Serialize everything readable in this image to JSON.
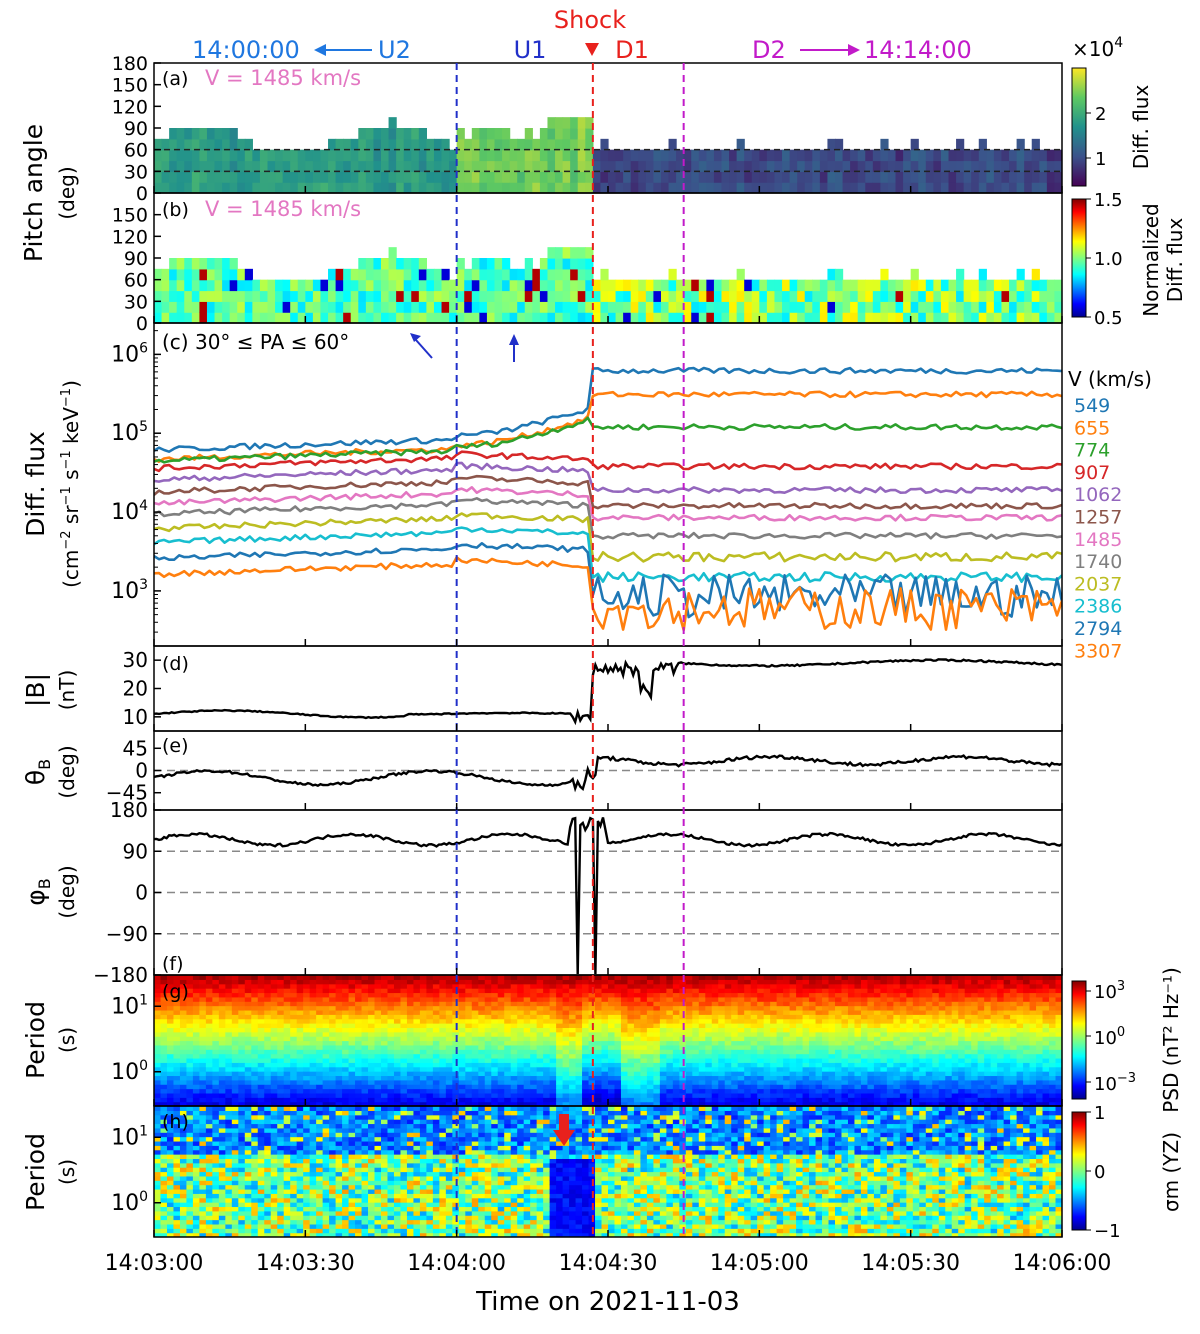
{
  "chart_data": {
    "type": "multi-panel time series",
    "xlabel": "Time on 2021-11-03",
    "xticks": [
      "14:03:00",
      "14:03:30",
      "14:04:00",
      "14:04:30",
      "14:05:00",
      "14:05:30",
      "14:06:00"
    ],
    "xlim_s": [
      0,
      180
    ],
    "header": {
      "shock": "Shock",
      "u2": "14:00:00",
      "u2_label": "U2",
      "u1": "U1",
      "d1": "D1",
      "d2": "D2",
      "d2_time": "14:14:00"
    },
    "markers_s": {
      "u1": 60,
      "shock": 87,
      "d2": 105
    },
    "colors": {
      "u": "#2130c9",
      "shock": "#e8211d",
      "d": "#c21ac9",
      "text_pink": "#e377c2"
    },
    "panel_a": {
      "tag": "(a)",
      "note": "V = 1485 km/s",
      "ylabel": "Pitch angle",
      "yunit": "(deg)",
      "ylim": [
        0,
        180
      ],
      "yticks": [
        "0",
        "30",
        "60",
        "90",
        "120",
        "150",
        "180"
      ],
      "hlines": [
        30,
        60
      ],
      "cbar_label": "Diff. flux",
      "cbar_exp": "×10",
      "cbar_exp_sup": "4",
      "cbar_ticks": [
        "1",
        "2"
      ],
      "colormap": "viridis"
    },
    "panel_b": {
      "tag": "(b)",
      "note": "V = 1485 km/s",
      "ylim": [
        0,
        180
      ],
      "yticks": [
        "0",
        "30",
        "60",
        "90",
        "120",
        "150"
      ],
      "cbar_label1": "Normalized",
      "cbar_label2": "Diff. flux",
      "cbar_ticks": [
        "0.5",
        "1.0",
        "1.5"
      ],
      "colormap": "jet"
    },
    "panel_c": {
      "tag": "(c)",
      "note": "30° ≤ PA ≤ 60°",
      "ylabel": "Diff. flux",
      "yscale": "log",
      "ylim": [
        200,
        2500000
      ],
      "yticks": [
        "10",
        "10",
        "10",
        "10"
      ],
      "yticks_exp": [
        "3",
        "4",
        "5",
        "6"
      ],
      "legend_title": "V (km/s)",
      "series": [
        {
          "name": "549",
          "color": "#1f77b4",
          "up": 72000,
          "down": 620000
        },
        {
          "name": "655",
          "color": "#ff7f0e",
          "up": 55000,
          "down": 310000
        },
        {
          "name": "774",
          "color": "#2ca02c",
          "up": 52000,
          "down": 120000
        },
        {
          "name": "907",
          "color": "#d62728",
          "up": 42000,
          "down": 38000
        },
        {
          "name": "1062",
          "color": "#9467bd",
          "up": 30000,
          "down": 19000
        },
        {
          "name": "1257",
          "color": "#8c564b",
          "up": 21000,
          "down": 12000
        },
        {
          "name": "1485",
          "color": "#e377c2",
          "up": 15000,
          "down": 8500
        },
        {
          "name": "1740",
          "color": "#7f7f7f",
          "up": 11000,
          "down": 5000
        },
        {
          "name": "2037",
          "color": "#bcbd22",
          "up": 7200,
          "down": 2700
        },
        {
          "name": "2386",
          "color": "#17becf",
          "up": 4800,
          "down": 1500
        },
        {
          "name": "2794",
          "color": "#1f77b4",
          "up": 3000,
          "down": 850
        },
        {
          "name": "3307",
          "color": "#ff7f0e",
          "up": 1900,
          "down": 600
        }
      ]
    },
    "panel_d": {
      "tag": "(d)",
      "ylabel": "|B|",
      "yunit": "(nT)",
      "ylim": [
        5,
        35
      ],
      "yticks": [
        "10",
        "20",
        "30"
      ],
      "upstream_nT": 11,
      "downstream_nT": 29
    },
    "panel_e": {
      "tag": "(e)",
      "ylabel_main": "θ",
      "ylabel_sub": "B",
      "yunit": "(deg)",
      "ylim": [
        -80,
        80
      ],
      "yticks": [
        "−45",
        "0",
        "45"
      ],
      "upstream_deg": -15,
      "downstream_deg": 20
    },
    "panel_f": {
      "tag": "(f)",
      "ylabel_main": "φ",
      "ylabel_sub": "B",
      "yunit": "(deg)",
      "ylim": [
        -180,
        180
      ],
      "yticks": [
        "−180",
        "−90",
        "0",
        "90",
        "180"
      ],
      "hlines": [
        -90,
        0,
        90
      ],
      "typical_deg": 115
    },
    "panel_g": {
      "tag": "(g)",
      "ylabel": "Period",
      "yunit": "(s)",
      "yticks": [
        "10",
        "10"
      ],
      "yticks_exp": [
        "0",
        "1"
      ],
      "cbar_label": "PSD (nT² Hz⁻¹)",
      "cbar_ticks": [
        "10",
        "10",
        "10"
      ],
      "cbar_ticks_exp": [
        "−3",
        "0",
        "3"
      ],
      "colormap": "jet"
    },
    "panel_h": {
      "tag": "(h)",
      "ylabel": "Period",
      "yunit": "(s)",
      "yticks": [
        "10",
        "10"
      ],
      "yticks_exp": [
        "0",
        "1"
      ],
      "cbar_label": "σm (YZ)",
      "cbar_ticks": [
        "−1",
        "0",
        "1"
      ],
      "colormap": "jet"
    }
  }
}
